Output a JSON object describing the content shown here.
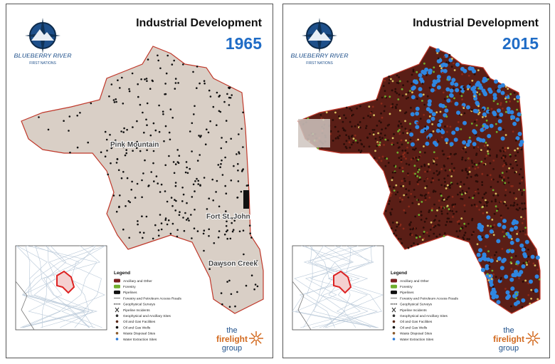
{
  "panels": [
    {
      "title": "Industrial Development",
      "year": "1965",
      "logo": {
        "name": "BLUEBERRY RIVER",
        "sub": "FIRST NATIONS"
      },
      "places": [
        "Pink Mountain",
        "Fort St. John",
        "Dawson Creek"
      ],
      "legend": {
        "title": "Legend",
        "items": [
          "Ancillary and Other",
          "Forestry",
          "Pipelines",
          "Forestry and Petroleum Access Roads",
          "Geophysical Surveys",
          "Pipeline Incidents",
          "Geophysical and Ancillary Sites",
          "Oil and Gas Facilities",
          "Oil and Gas Wells",
          "Waste Disposal Sites",
          "Water Extraction Sites"
        ]
      },
      "brand": {
        "the": "the",
        "name": "firelight",
        "group": "group"
      }
    },
    {
      "title": "Industrial Development",
      "year": "2015",
      "logo": {
        "name": "BLUEBERRY RIVER",
        "sub": "FIRST NATIONS"
      },
      "places": [],
      "legend": {
        "title": "Legend",
        "items": [
          "Ancillary and Other",
          "Forestry",
          "Pipelines",
          "Forestry and Petroleum Access Roads",
          "Geophysical Surveys",
          "Pipeline Incidents",
          "Geophysical and Ancillary Sites",
          "Oil and Gas Facilities",
          "Oil and Gas Wells",
          "Waste Disposal Sites",
          "Water Extraction Sites"
        ]
      },
      "brand": {
        "the": "the",
        "name": "firelight",
        "group": "group"
      }
    }
  ]
}
